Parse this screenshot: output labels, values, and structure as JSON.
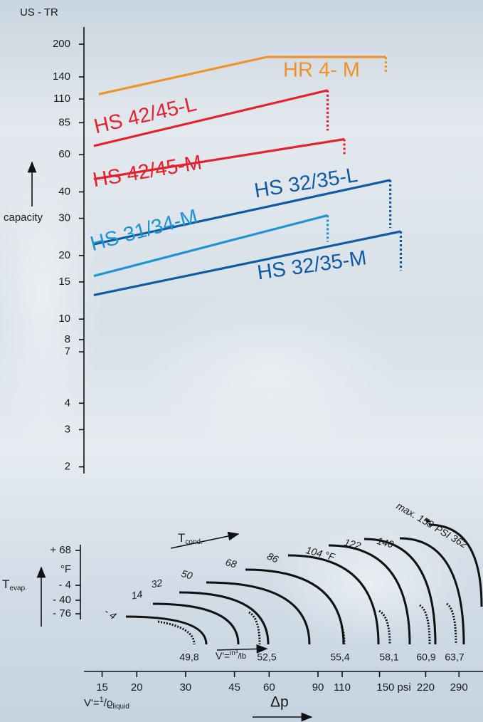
{
  "chart_data": {
    "type": "line",
    "y_axis_title": "US - TR",
    "y_label": "capacity",
    "x_label": "Δp",
    "x_sublabel": [
      "V'=",
      "1",
      "/ϱ",
      "liquid"
    ],
    "xscale": "log",
    "yscale": "log",
    "xlim": [
      12.9,
      354
    ],
    "ylim": [
      1.86,
      241
    ],
    "xticks": [
      15,
      20,
      30,
      45,
      60,
      90,
      110,
      {
        "value": 150,
        "label": "150 psi"
      },
      220,
      290
    ],
    "yticks": [
      2,
      3,
      4,
      7,
      8,
      10,
      15,
      20,
      30,
      40,
      60,
      85,
      110,
      140,
      200
    ],
    "series": [
      {
        "name": "HR 4- M",
        "color": "#f0922a",
        "x": [
          14.6,
          59,
          158
        ],
        "values": [
          116,
          174,
          174
        ],
        "drop_to": 148
      },
      {
        "name": "HS 42/45-L",
        "color": "#e3222f",
        "x": [
          14,
          97.5
        ],
        "values": [
          66,
          121
        ],
        "drop_to": 78
      },
      {
        "name": "HS 42/45-M",
        "color": "#e3222f",
        "x": [
          14,
          112
        ],
        "values": [
          46,
          71
        ],
        "drop_to": 59
      },
      {
        "name": "HS 32/35-L",
        "color": "#0f5aa3",
        "x": [
          14,
          164
        ],
        "values": [
          22.6,
          45.5
        ],
        "drop_to": 27
      },
      {
        "name": "HS 31/34-M",
        "color": "#1e94d2",
        "x": [
          14,
          97.5
        ],
        "values": [
          16,
          31
        ],
        "drop_to": 23.2
      },
      {
        "name": "HS 32/35-M",
        "color": "#0f5aa3",
        "x": [
          14,
          179
        ],
        "values": [
          13,
          26
        ],
        "drop_to": 17
      }
    ]
  },
  "nomogram": {
    "t_evap": [
      "T",
      "evap."
    ],
    "t_evap_ticks": [
      "+ 68",
      "°F",
      "- 4",
      "- 40",
      "- 76"
    ],
    "t_cond": [
      "T",
      "cond."
    ],
    "t_cond_curves": [
      "- 4",
      "14",
      "32",
      "50",
      "68",
      "86",
      "104 °F",
      "122",
      "140",
      "max. 158"
    ],
    "psi_max": "PSI 362",
    "v_values": [
      "49,8",
      "52,5",
      "55,4",
      "58,1",
      "60,9",
      "63,7"
    ],
    "v_unit": [
      "V'=",
      "in³",
      "/lb"
    ]
  }
}
